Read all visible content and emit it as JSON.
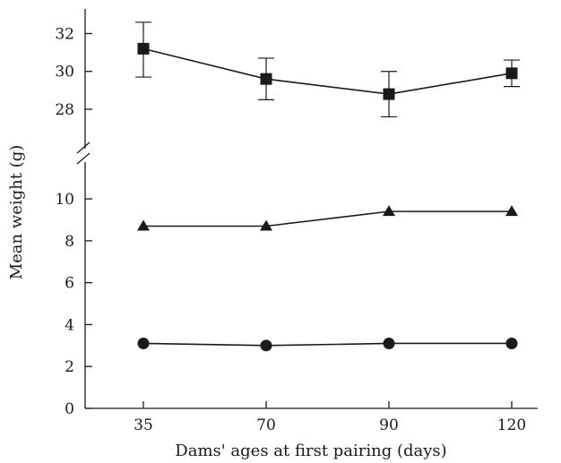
{
  "chart_data": {
    "type": "line",
    "xlabel": "Dams' ages at first pairing (days)",
    "ylabel": "Mean weight (g)",
    "categories": [
      "35",
      "70",
      "90",
      "120"
    ],
    "y_axis": {
      "broken": true,
      "lower_range": [
        0,
        11.5
      ],
      "upper_range": [
        26.2,
        33.3
      ],
      "lower_ticks": [
        "0",
        "2",
        "4",
        "6",
        "8",
        "10"
      ],
      "upper_ticks": [
        "28",
        "30",
        "32"
      ]
    },
    "grid": false,
    "legend": "none",
    "series": [
      {
        "marker": "square",
        "values": [
          31.2,
          29.6,
          28.8,
          29.9
        ],
        "error_low": [
          29.7,
          28.5,
          27.6,
          29.2
        ],
        "error_high": [
          32.6,
          30.7,
          30.0,
          30.6
        ]
      },
      {
        "marker": "triangle",
        "values": [
          8.7,
          8.7,
          9.4,
          9.4
        ]
      },
      {
        "marker": "circle",
        "values": [
          3.1,
          3.0,
          3.1,
          3.1
        ]
      }
    ]
  }
}
